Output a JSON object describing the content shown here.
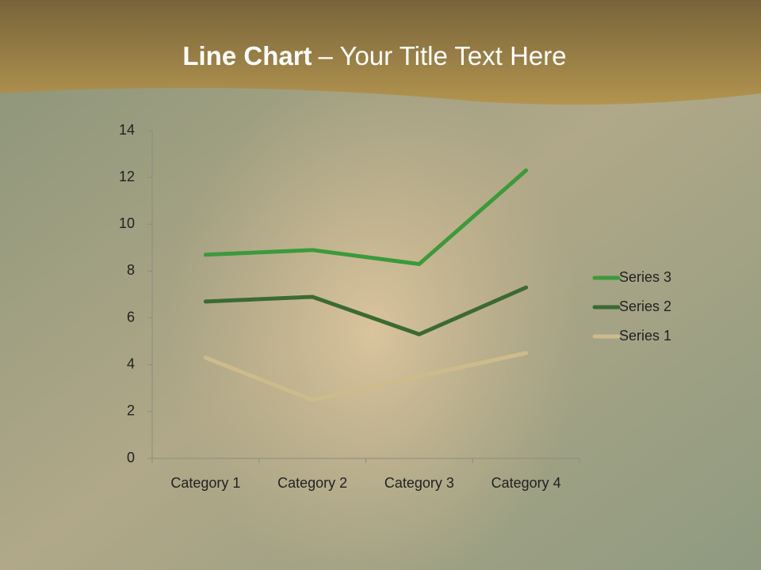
{
  "title_parts": [
    "Line Chart",
    "– Your Title Text Here"
  ],
  "chart_data": {
    "type": "line",
    "stacked": true,
    "categories": [
      "Category 1",
      "Category 2",
      "Category 3",
      "Category 4"
    ],
    "series": [
      {
        "name": "Series 1",
        "color": "#cdbb8c",
        "values": [
          4.3,
          2.5,
          3.5,
          4.5
        ]
      },
      {
        "name": "Series 2",
        "color": "#3b6a33",
        "values": [
          2.4,
          4.4,
          1.8,
          2.8
        ]
      },
      {
        "name": "Series 3",
        "color": "#3b9a3b",
        "values": [
          2,
          2,
          3,
          5
        ]
      }
    ],
    "ylim": [
      0,
      14
    ],
    "yticks": [
      0,
      2,
      4,
      6,
      8,
      10,
      12,
      14
    ],
    "grid": false,
    "legend": "right"
  }
}
